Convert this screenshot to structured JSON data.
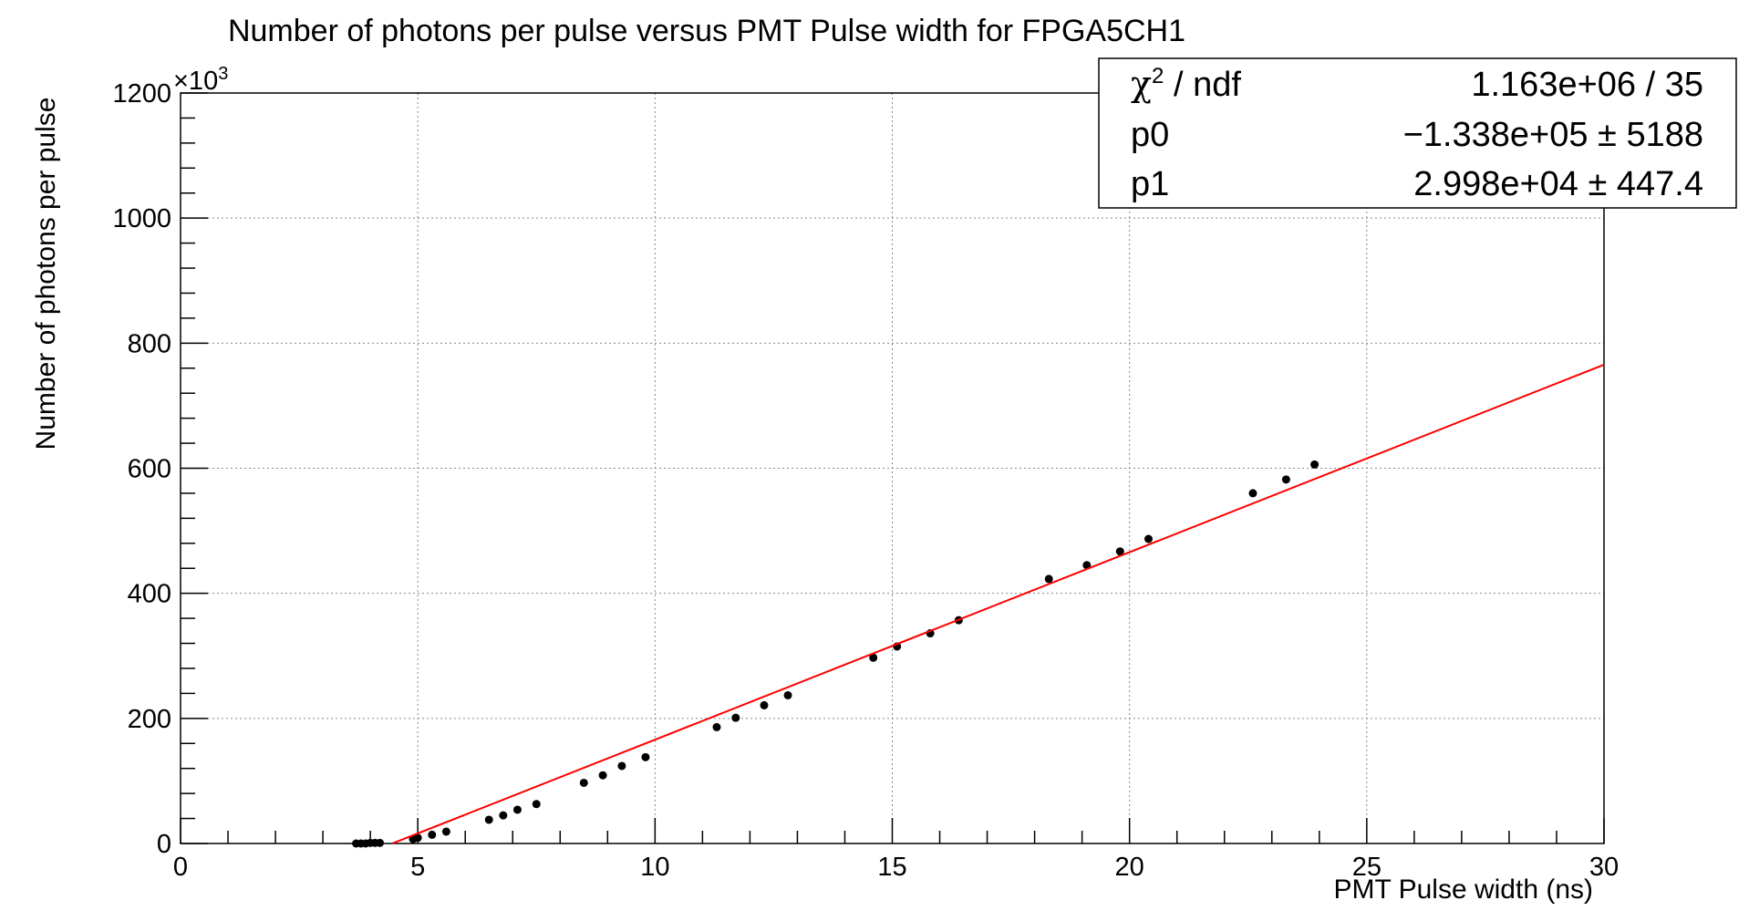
{
  "chart_data": {
    "type": "scatter",
    "title": "Number of photons per pulse versus PMT Pulse width for FPGA5CH1",
    "xlabel": "PMT Pulse width (ns)",
    "ylabel": "Number of photons per pulse",
    "y_multiplier": "×10",
    "y_multiplier_exp": "3",
    "xlim": [
      0,
      30
    ],
    "ylim": [
      0,
      1200
    ],
    "x_ticks": [
      0,
      5,
      10,
      15,
      20,
      25,
      30
    ],
    "y_ticks": [
      0,
      200,
      400,
      600,
      800,
      1000,
      1200
    ],
    "grid": true,
    "points": {
      "x": [
        3.7,
        3.8,
        3.9,
        4.0,
        4.1,
        4.2,
        4.9,
        5.0,
        5.3,
        5.6,
        6.5,
        6.8,
        7.1,
        7.5,
        8.5,
        8.9,
        9.3,
        9.8,
        11.3,
        11.7,
        12.3,
        12.8,
        14.6,
        15.1,
        15.8,
        16.4,
        18.3,
        19.1,
        19.8,
        20.4,
        22.6,
        23.3,
        23.9
      ],
      "y": [
        0,
        0,
        0,
        1,
        1,
        1,
        7,
        9,
        14,
        19,
        38,
        45,
        54,
        63,
        97,
        109,
        124,
        138,
        186,
        201,
        221,
        237,
        297,
        315,
        336,
        357,
        423,
        445,
        467,
        487,
        560,
        582,
        606
      ]
    },
    "fit": {
      "function": "p0 + p1*x",
      "p0": -133.8,
      "p1": 29.98,
      "x_range": [
        4.47,
        30
      ],
      "color": "#ff0000"
    },
    "stats_box": {
      "chi2_symbol": "χ",
      "chi2_sup": "2",
      "rows": [
        {
          "label": " / ndf",
          "value": "1.163e+06 / 35"
        },
        {
          "label": "p0",
          "value": "−1.338e+05 ±  5188"
        },
        {
          "label": "p1",
          "value": "2.998e+04 ± 447.4"
        }
      ]
    },
    "marker_color": "#000000",
    "axis_color": "#000000"
  }
}
